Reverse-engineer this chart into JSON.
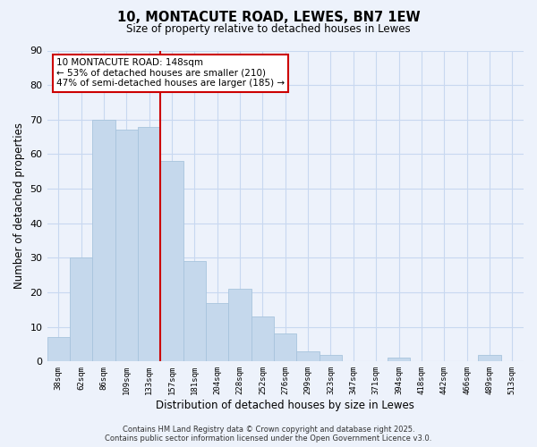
{
  "title": "10, MONTACUTE ROAD, LEWES, BN7 1EW",
  "subtitle": "Size of property relative to detached houses in Lewes",
  "xlabel": "Distribution of detached houses by size in Lewes",
  "ylabel": "Number of detached properties",
  "bar_color": "#c5d8ec",
  "bar_edge_color": "#a8c4dd",
  "bins": [
    "38sqm",
    "62sqm",
    "86sqm",
    "109sqm",
    "133sqm",
    "157sqm",
    "181sqm",
    "204sqm",
    "228sqm",
    "252sqm",
    "276sqm",
    "299sqm",
    "323sqm",
    "347sqm",
    "371sqm",
    "394sqm",
    "418sqm",
    "442sqm",
    "466sqm",
    "489sqm",
    "513sqm"
  ],
  "values": [
    7,
    30,
    70,
    67,
    68,
    58,
    29,
    17,
    21,
    13,
    8,
    3,
    2,
    0,
    0,
    1,
    0,
    0,
    0,
    2,
    0
  ],
  "ylim": [
    0,
    90
  ],
  "yticks": [
    0,
    10,
    20,
    30,
    40,
    50,
    60,
    70,
    80,
    90
  ],
  "vline_x_index": 4.5,
  "annotation_line1": "10 MONTACUTE ROAD: 148sqm",
  "annotation_line2": "← 53% of detached houses are smaller (210)",
  "annotation_line3": "47% of semi-detached houses are larger (185) →",
  "annotation_box_color": "white",
  "annotation_box_edge": "#cc0000",
  "vline_color": "#cc0000",
  "background_color": "#edf2fb",
  "grid_color": "#c8d8f0",
  "footer_line1": "Contains HM Land Registry data © Crown copyright and database right 2025.",
  "footer_line2": "Contains public sector information licensed under the Open Government Licence v3.0."
}
